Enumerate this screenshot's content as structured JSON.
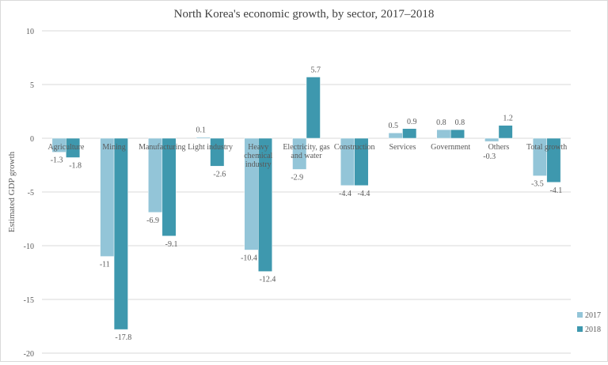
{
  "chart_data": {
    "type": "bar",
    "title": "North Korea's economic growth, by sector, 2017–2018",
    "xlabel": "",
    "ylabel": "Estimated GDP growth",
    "ylim": [
      -20,
      10
    ],
    "yticks": [
      10,
      5,
      0,
      -5,
      -10,
      -15,
      -20
    ],
    "grid": true,
    "legend_position": "right",
    "categories": [
      [
        "Agriculture"
      ],
      [
        "Mining"
      ],
      [
        "Manufacturing"
      ],
      [
        "Light industry"
      ],
      [
        "Heavy",
        "chemical",
        "industry"
      ],
      [
        "Electricity, gas",
        "and water"
      ],
      [
        "Construction"
      ],
      [
        "Services"
      ],
      [
        "Government"
      ],
      [
        "Others"
      ],
      [
        "Total growth"
      ]
    ],
    "series": [
      {
        "name": "2017",
        "color": "#93c5d8",
        "values": [
          -1.3,
          -11,
          -6.9,
          0.1,
          -10.4,
          -2.9,
          -4.4,
          0.5,
          0.8,
          -0.3,
          -3.5
        ]
      },
      {
        "name": "2018",
        "color": "#3e98ae",
        "values": [
          -1.8,
          -17.8,
          -9.1,
          -2.6,
          -12.4,
          5.7,
          -4.4,
          0.9,
          0.8,
          1.2,
          -4.1
        ]
      }
    ]
  }
}
